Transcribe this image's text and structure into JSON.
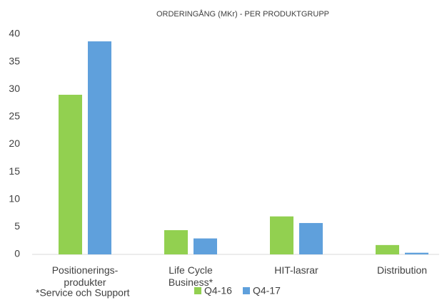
{
  "chart_data": {
    "type": "bar",
    "title": "ORDERINGÅNG (MKr) - PER PRODUKTGRUPP",
    "categories": [
      "Positionerings-produkter",
      "Life Cycle Business*",
      "HIT-lasrar",
      "Distribution"
    ],
    "series": [
      {
        "name": "Q4-16",
        "color": "#92d050",
        "values": [
          29,
          4.4,
          6.9,
          1.7
        ]
      },
      {
        "name": "Q4-17",
        "color": "#5fa0dc",
        "values": [
          38.7,
          2.9,
          5.7,
          0.3
        ]
      }
    ],
    "ylim": [
      0,
      40
    ],
    "yticks": [
      0,
      5,
      10,
      15,
      20,
      25,
      30,
      35,
      40
    ],
    "grid": false,
    "legend": "bottom",
    "annotations": [
      "*Service och Support"
    ]
  }
}
